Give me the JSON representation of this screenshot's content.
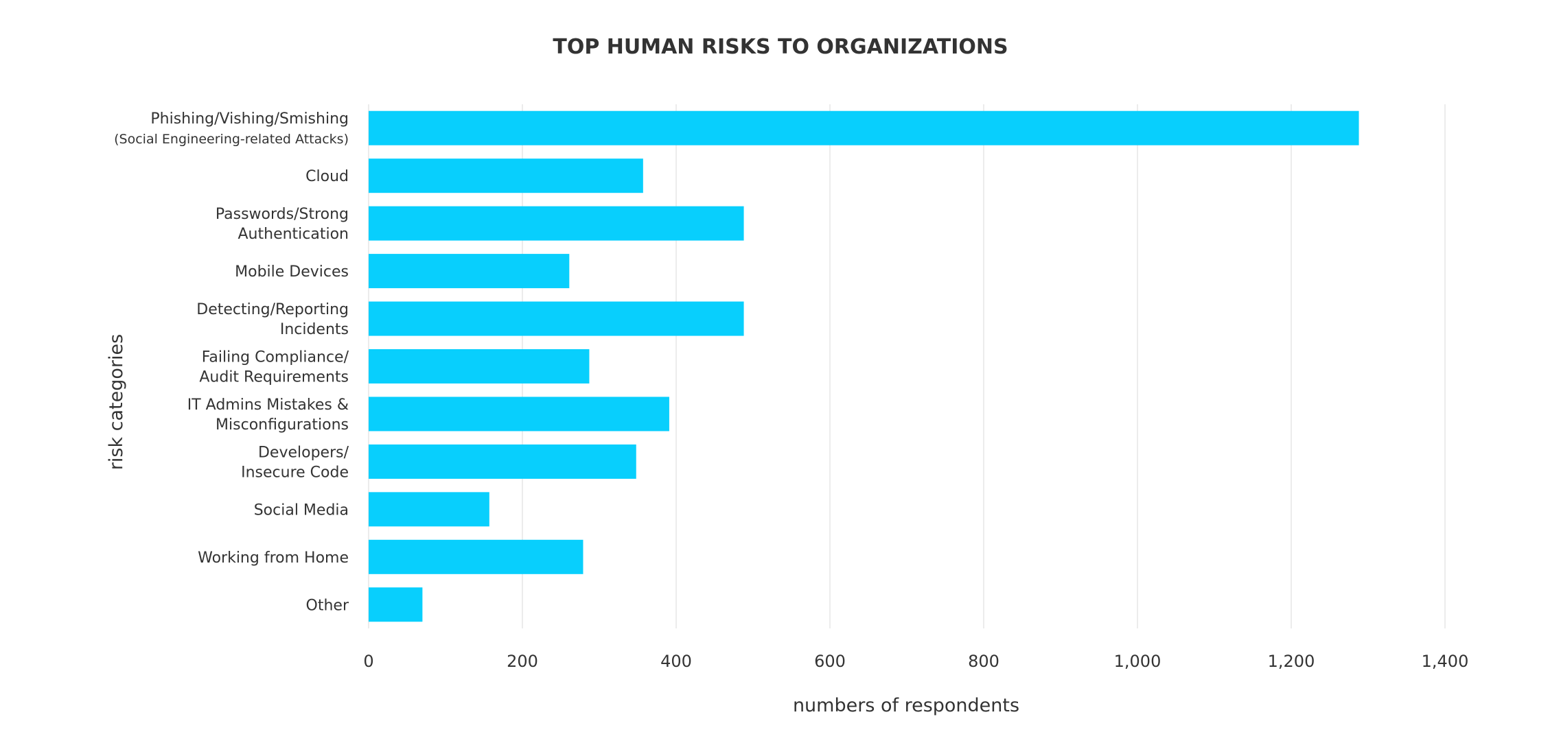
{
  "chart_data": {
    "type": "bar",
    "orientation": "horizontal",
    "title": "TOP HUMAN RISKS TO ORGANIZATIONS",
    "xlabel": "numbers of respondents",
    "ylabel": "risk categories",
    "xlim": [
      0,
      1400
    ],
    "xticks": [
      0,
      200,
      400,
      600,
      800,
      1000,
      1200,
      1400
    ],
    "xtick_labels": [
      "0",
      "200",
      "400",
      "600",
      "800",
      "1,000",
      "1,200",
      "1,400"
    ],
    "grid": "vertical",
    "bar_color": "#08cffd",
    "categories": [
      {
        "lines": [
          "Phishing/Vishing/Smishing",
          "(Social Engineering-related Attacks)"
        ]
      },
      {
        "lines": [
          "Cloud"
        ]
      },
      {
        "lines": [
          "Passwords/Strong",
          "Authentication"
        ]
      },
      {
        "lines": [
          "Mobile Devices"
        ]
      },
      {
        "lines": [
          "Detecting/Reporting",
          "Incidents"
        ]
      },
      {
        "lines": [
          "Failing Compliance/",
          "Audit Requirements"
        ]
      },
      {
        "lines": [
          "IT Admins Mistakes &",
          "Misconfigurations"
        ]
      },
      {
        "lines": [
          "Developers/",
          "Insecure Code"
        ]
      },
      {
        "lines": [
          "Social Media"
        ]
      },
      {
        "lines": [
          "Working from Home"
        ]
      },
      {
        "lines": [
          "Other"
        ]
      }
    ],
    "values": [
      1288,
      357,
      488,
      261,
      488,
      287,
      391,
      348,
      157,
      279,
      70
    ]
  }
}
